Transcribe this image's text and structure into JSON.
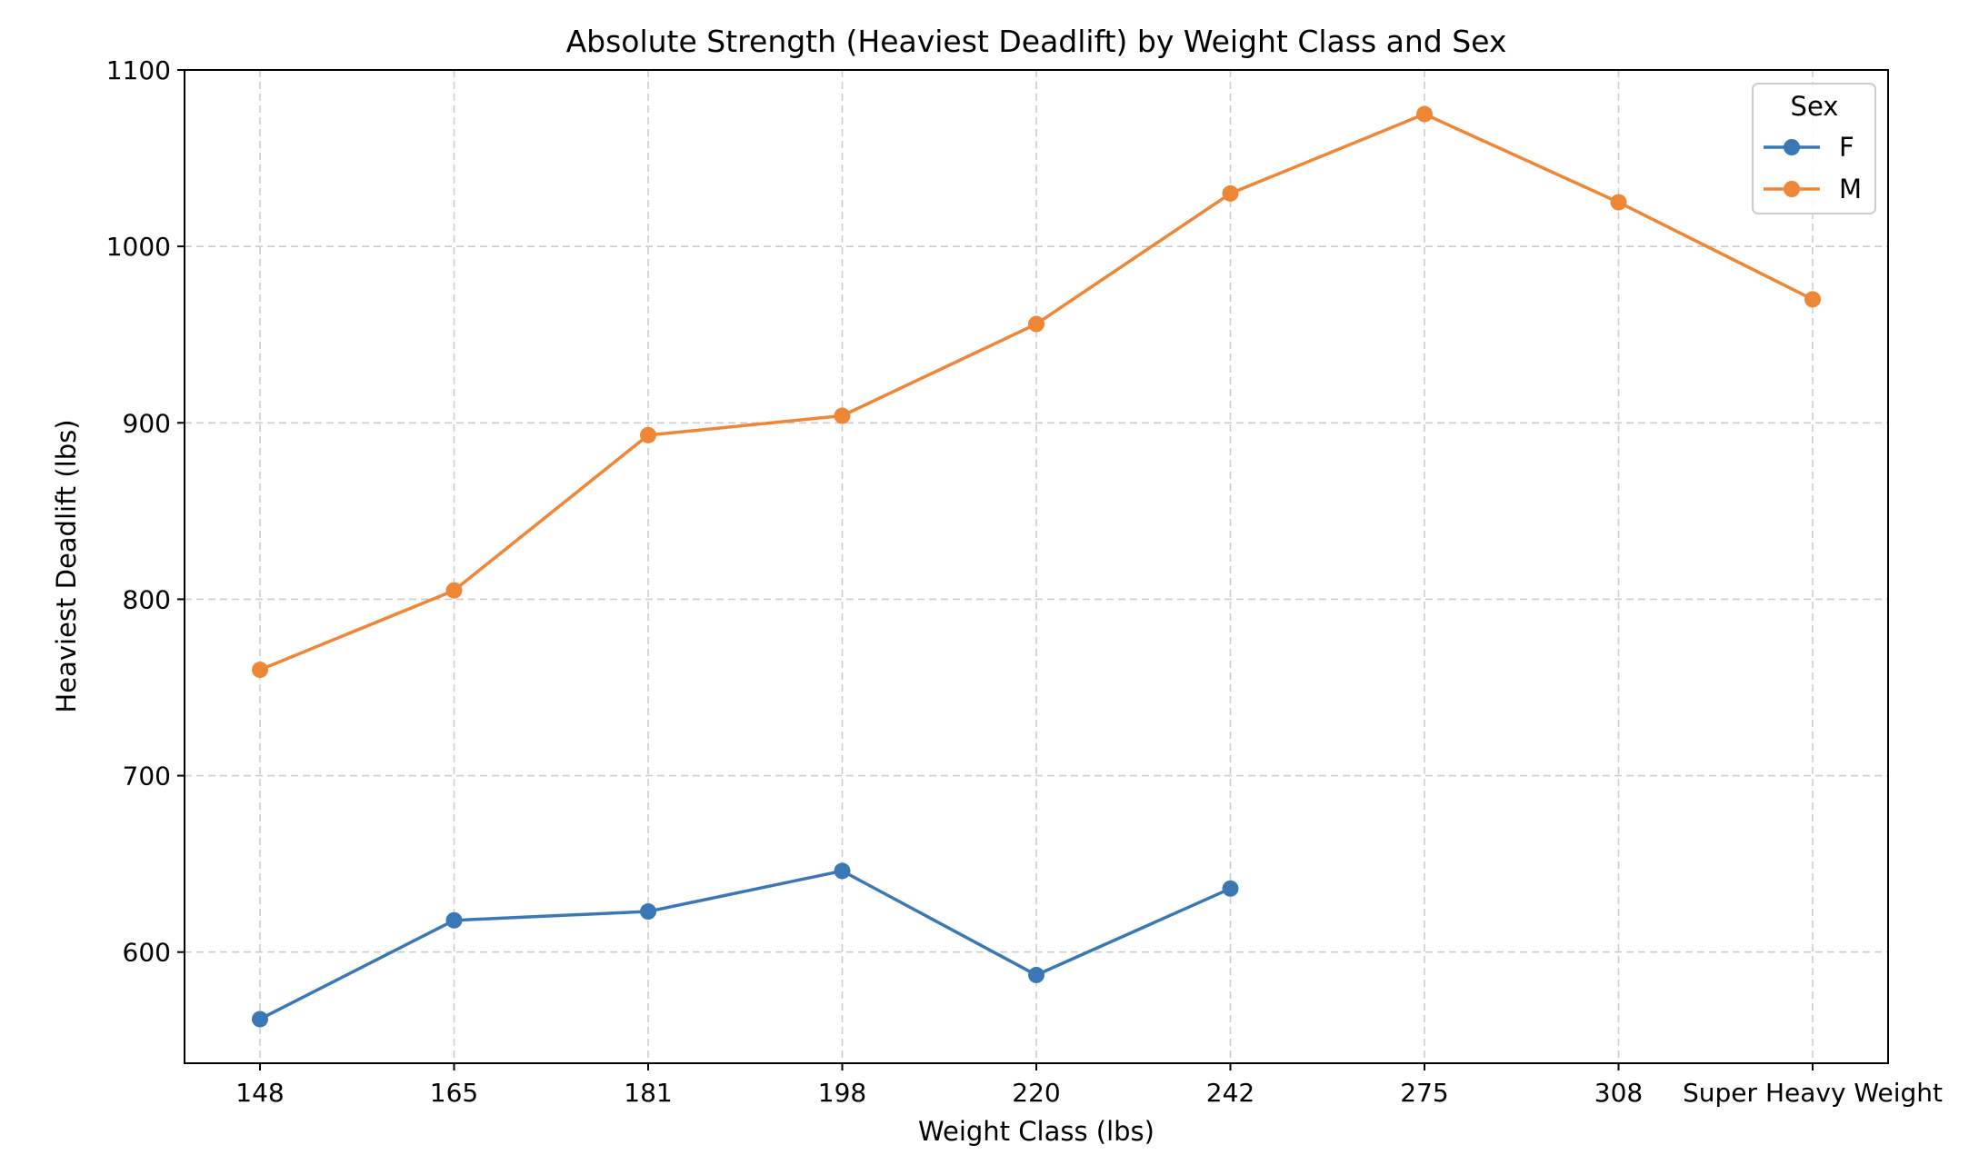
{
  "chart_data": {
    "type": "line",
    "title": "Absolute Strength (Heaviest Deadlift) by Weight Class and Sex",
    "xlabel": "Weight Class (lbs)",
    "ylabel": "Heaviest Deadlift (lbs)",
    "categories": [
      "148",
      "165",
      "181",
      "198",
      "220",
      "242",
      "275",
      "308",
      "Super Heavy Weight"
    ],
    "yticks": [
      600,
      700,
      800,
      900,
      1000,
      1100
    ],
    "ylim": [
      537,
      1100
    ],
    "grid": true,
    "legend": {
      "title": "Sex",
      "placement": "top-right"
    },
    "series": [
      {
        "name": "F",
        "color": "#3a78b5",
        "values": [
          562,
          618,
          623,
          646,
          587,
          636,
          null,
          null,
          null
        ]
      },
      {
        "name": "M",
        "color": "#ef8636",
        "values": [
          760,
          805,
          893,
          904,
          956,
          1030,
          1075,
          1025,
          970
        ]
      }
    ]
  }
}
